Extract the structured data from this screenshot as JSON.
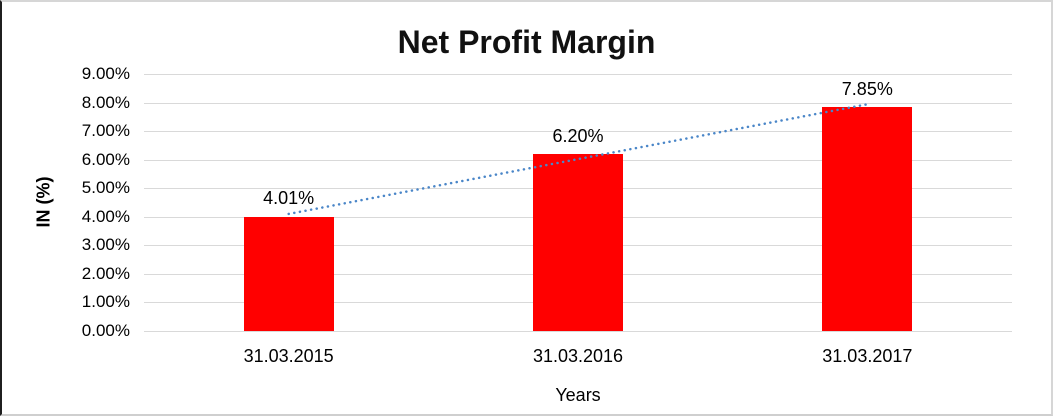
{
  "chart_data": {
    "type": "bar",
    "title": "Net Profit Margin",
    "xlabel": "Years",
    "ylabel": "IN (%)",
    "categories": [
      "31.03.2015",
      "31.03.2016",
      "31.03.2017"
    ],
    "values": [
      4.01,
      6.2,
      7.85
    ],
    "data_labels": [
      "4.01%",
      "6.20%",
      "7.85%"
    ],
    "ylim": [
      0,
      9
    ],
    "ytick_step": 1,
    "ytick_labels": [
      "0.00%",
      "1.00%",
      "2.00%",
      "3.00%",
      "4.00%",
      "5.00%",
      "6.00%",
      "7.00%",
      "8.00%",
      "9.00%"
    ],
    "grid": true,
    "legend": "none",
    "bar_color": "#ff0000",
    "gridline_color": "#d9d9d9",
    "trendline": {
      "type": "linear",
      "style": "dotted",
      "color": "#4a86c8"
    }
  }
}
